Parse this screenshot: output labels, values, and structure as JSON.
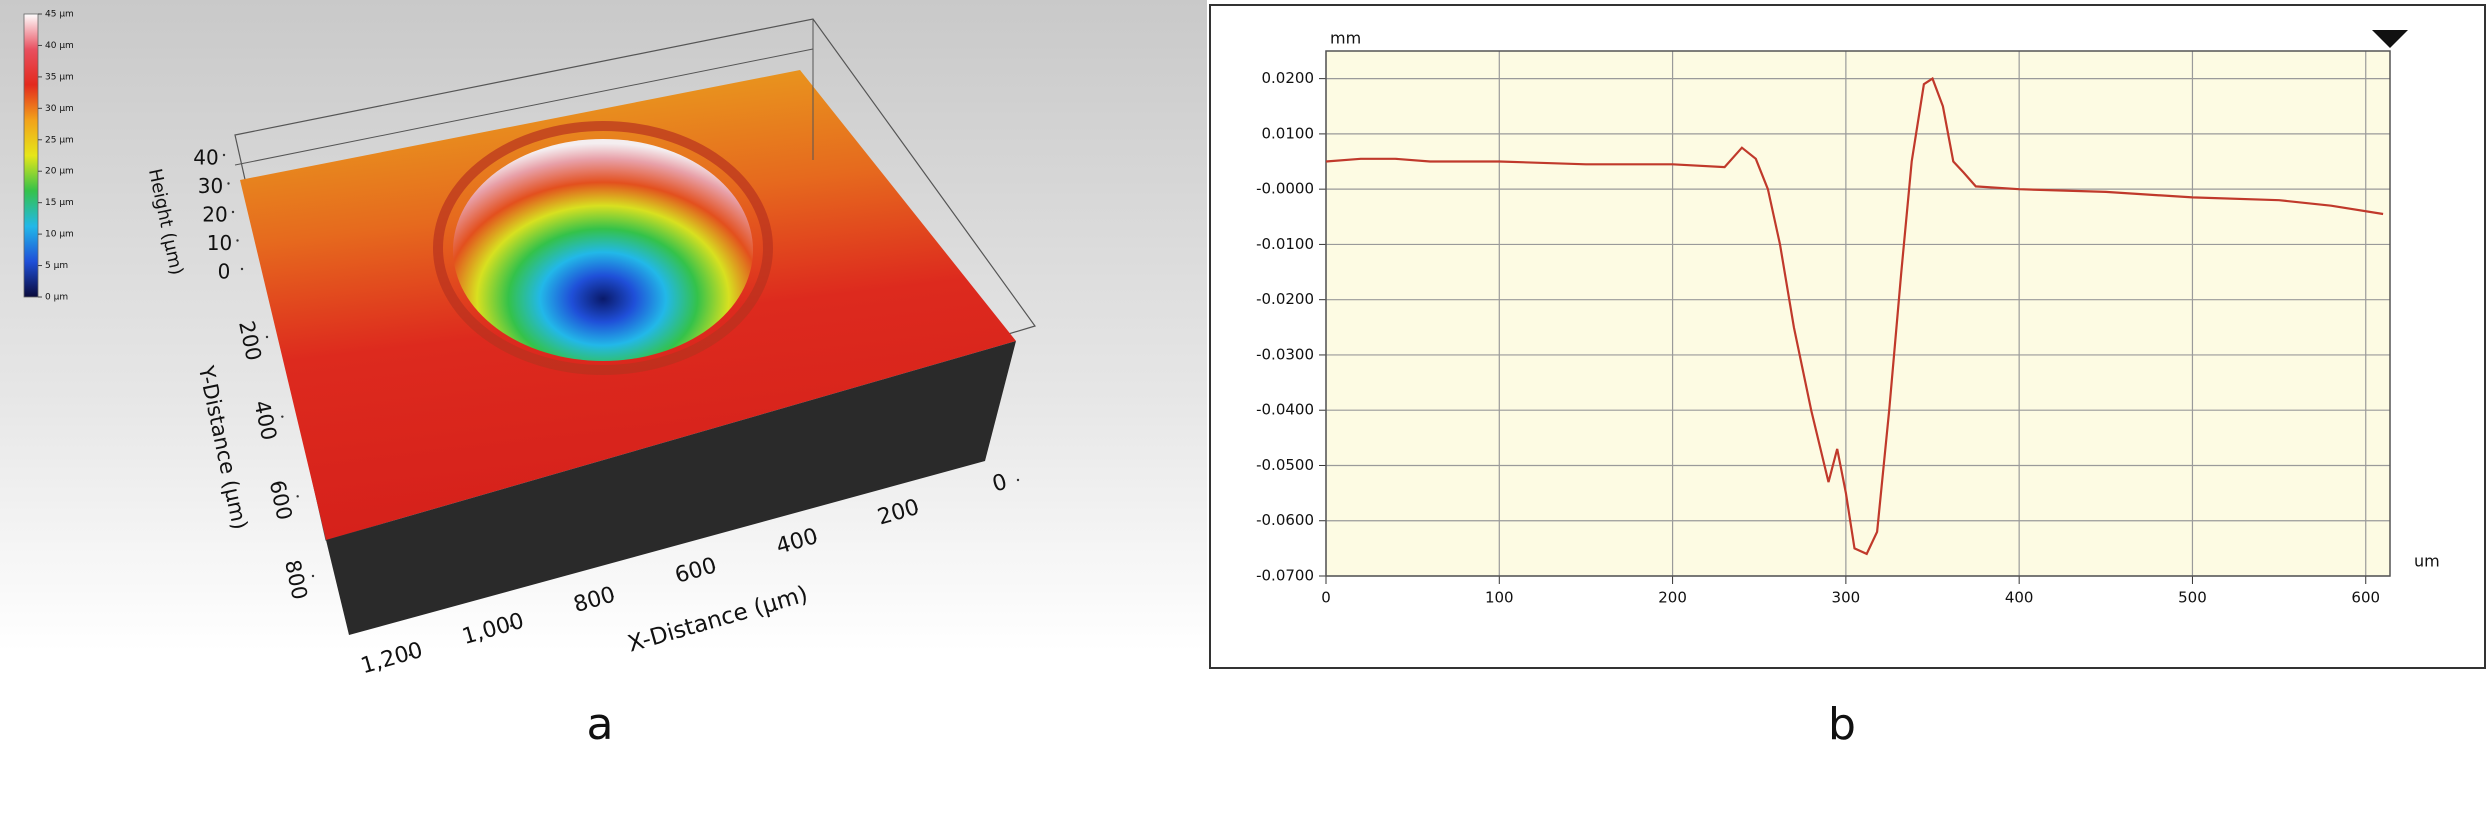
{
  "chart_data": [
    {
      "type": "surface3d",
      "panel_label": "a",
      "colorbar": {
        "colormap": [
          "#0a0a3c",
          "#1f4fd8",
          "#22b8e8",
          "#34c24a",
          "#e6e619",
          "#f2a21a",
          "#e32a1e",
          "#e85060",
          "#ffffff"
        ],
        "lim": [
          0,
          45
        ],
        "ticks": [
          {
            "value": 0,
            "label": "0 μm"
          },
          {
            "value": 5,
            "label": "5 μm"
          },
          {
            "value": 10,
            "label": "10 μm"
          },
          {
            "value": 15,
            "label": "15 μm"
          },
          {
            "value": 20,
            "label": "20 μm"
          },
          {
            "value": 25,
            "label": "25 μm"
          },
          {
            "value": 30,
            "label": "30 μm"
          },
          {
            "value": 35,
            "label": "35 μm"
          },
          {
            "value": 40,
            "label": "40 μm"
          },
          {
            "value": 45,
            "label": "45 μm"
          }
        ]
      },
      "zlabel": "Height (μm)",
      "zticks": [
        0,
        10,
        20,
        30,
        40
      ],
      "ylabel": "Y-Distance (μm)",
      "yticks": [
        200,
        400,
        600,
        800
      ],
      "xlabel": "X-Distance (μm)",
      "xticks": [
        0,
        200,
        400,
        600,
        800,
        {
          "value": 1000,
          "label": "1,000"
        },
        {
          "value": 1200,
          "label": "1,200"
        }
      ]
    },
    {
      "type": "line",
      "panel_label": "b",
      "y_unit": "mm",
      "x_unit": "um",
      "x": [
        0,
        20,
        40,
        60,
        100,
        150,
        200,
        230,
        240,
        248,
        255,
        262,
        270,
        280,
        290,
        295,
        300,
        305,
        312,
        318,
        325,
        332,
        338,
        345,
        350,
        356,
        362,
        368,
        375,
        400,
        450,
        500,
        550,
        580,
        610
      ],
      "series": [
        {
          "color": "#c0392b",
          "values": [
            0.005,
            0.0055,
            0.0055,
            0.005,
            0.005,
            0.0045,
            0.0045,
            0.004,
            0.0075,
            0.0055,
            0.0,
            -0.01,
            -0.025,
            -0.04,
            -0.053,
            -0.047,
            -0.055,
            -0.065,
            -0.066,
            -0.062,
            -0.04,
            -0.015,
            0.005,
            0.019,
            0.02,
            0.015,
            0.005,
            0.003,
            0.0005,
            0.0,
            -0.0005,
            -0.0015,
            -0.002,
            -0.003,
            -0.0045
          ]
        }
      ],
      "xlim": [
        0,
        614
      ],
      "ylim": [
        -0.07,
        0.025
      ],
      "xticks": [
        0,
        100,
        200,
        300,
        400,
        500,
        600
      ],
      "yticks": [
        {
          "value": 0.02,
          "label": "0.0200"
        },
        {
          "value": 0.01,
          "label": "0.0100"
        },
        {
          "value": 0,
          "label": "-0.0000"
        },
        {
          "value": -0.01,
          "label": "-0.0100"
        },
        {
          "value": -0.02,
          "label": "-0.0200"
        },
        {
          "value": -0.03,
          "label": "-0.0300"
        },
        {
          "value": -0.04,
          "label": "-0.0400"
        },
        {
          "value": -0.05,
          "label": "-0.0500"
        },
        {
          "value": -0.06,
          "label": "-0.0600"
        },
        {
          "value": -0.07,
          "label": "-0.0700"
        }
      ],
      "grid": true
    }
  ]
}
